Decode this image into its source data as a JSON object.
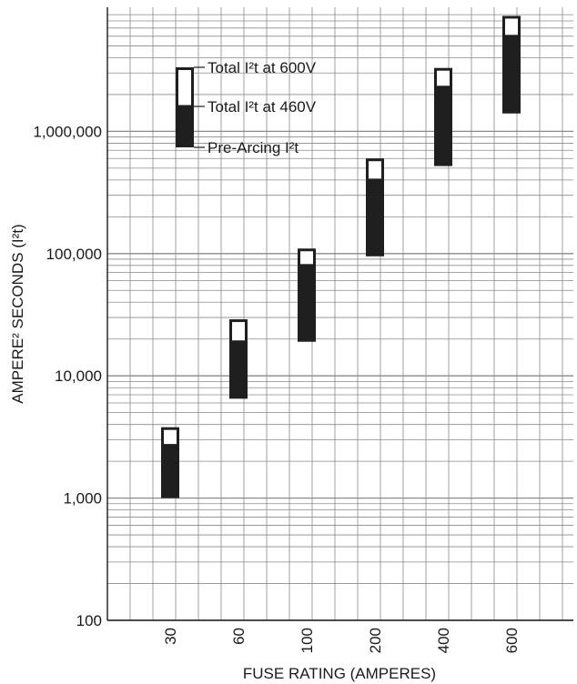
{
  "chart_data": {
    "type": "bar",
    "subtype": "floating-range-bars",
    "yscale": "log",
    "ylim": [
      100,
      10000000
    ],
    "xlabel": "FUSE RATING (AMPERES)",
    "ylabel": "AMPERE² SECONDS (I²t)",
    "categories": [
      "30",
      "60",
      "100",
      "200",
      "400",
      "600"
    ],
    "ytick_labels": [
      "100",
      "1,000",
      "10,000",
      "100,000",
      "1,000,000"
    ],
    "ytick_values": [
      100,
      1000,
      10000,
      100000,
      1000000
    ],
    "grid": true,
    "series": [
      {
        "name": "Pre-Arcing I²t",
        "values": [
          1000,
          6500,
          19000,
          95000,
          520000,
          1400000
        ]
      },
      {
        "name": "Total I²t at 460V",
        "values": [
          2700,
          19000,
          80000,
          400000,
          2300000,
          6000000
        ]
      },
      {
        "name": "Total I²t at 600V",
        "values": [
          3800,
          29000,
          110000,
          600000,
          3300000,
          8800000
        ]
      }
    ],
    "legend": {
      "placement": "top-left",
      "items": [
        "Total I²t at 600V",
        "Total I²t at 460V",
        "Pre-Arcing I²t"
      ]
    },
    "colors": {
      "bar_fill": "#1f1f1f",
      "bar_top": "#ffffff",
      "grid": "#8a8a8a"
    }
  }
}
